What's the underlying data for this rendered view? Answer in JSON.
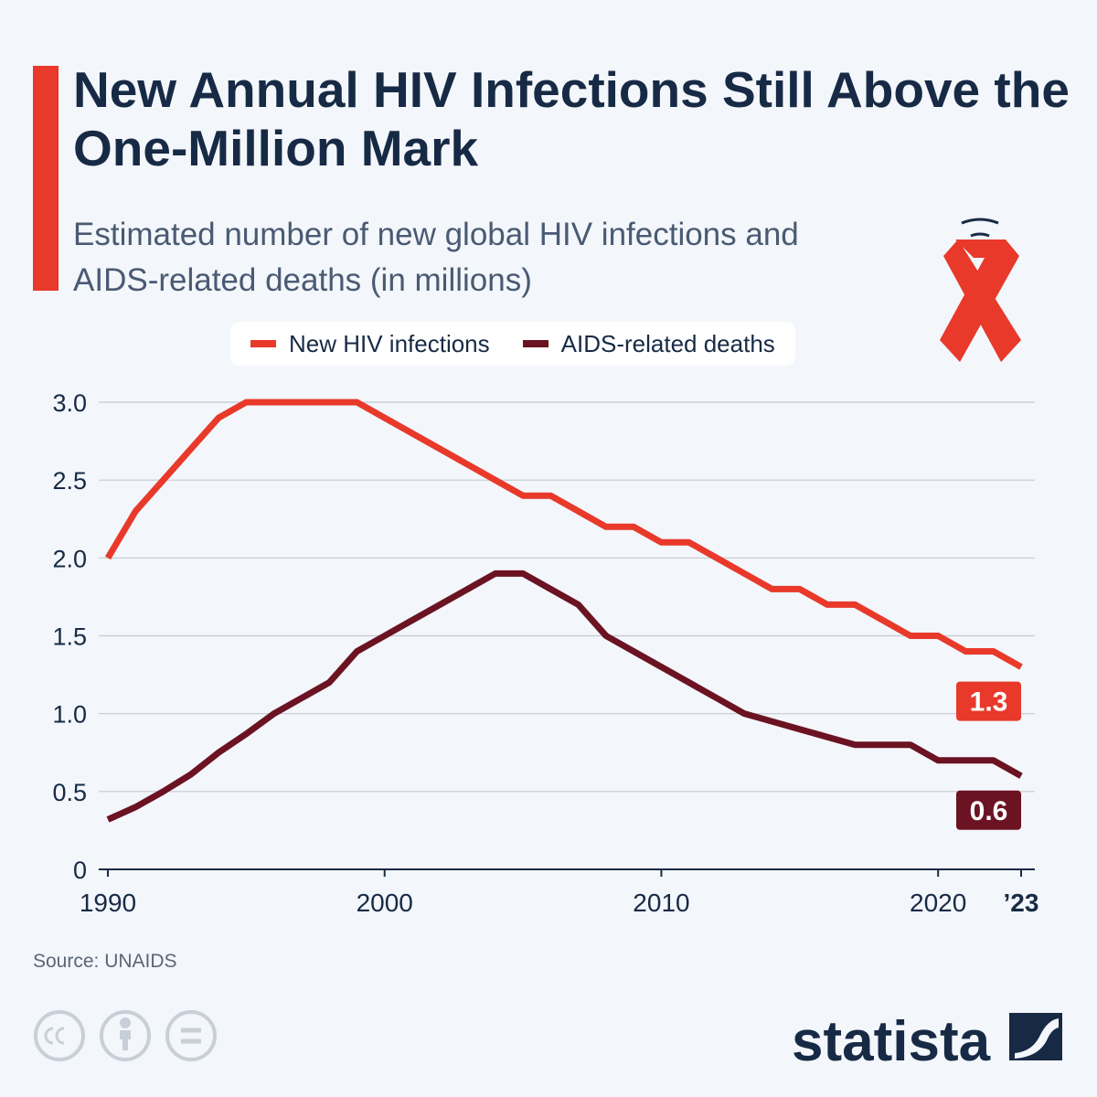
{
  "chart_data": {
    "type": "line",
    "title": "New Annual HIV Infections Still Above the One-Million Mark",
    "subtitle": "Estimated number of new global HIV infections and AIDS-related deaths (in millions)",
    "x": [
      1990,
      1991,
      1992,
      1993,
      1994,
      1995,
      1996,
      1997,
      1998,
      1999,
      2000,
      2001,
      2002,
      2003,
      2004,
      2005,
      2006,
      2007,
      2008,
      2009,
      2010,
      2011,
      2012,
      2013,
      2014,
      2015,
      2016,
      2017,
      2018,
      2019,
      2020,
      2021,
      2022,
      2023
    ],
    "series": [
      {
        "name": "New HIV infections",
        "color": "#e8392b",
        "values": [
          2.0,
          2.3,
          2.5,
          2.7,
          2.9,
          3.0,
          3.0,
          3.0,
          3.0,
          3.0,
          2.9,
          2.8,
          2.7,
          2.6,
          2.5,
          2.4,
          2.4,
          2.3,
          2.2,
          2.2,
          2.1,
          2.1,
          2.0,
          1.9,
          1.8,
          1.8,
          1.7,
          1.7,
          1.6,
          1.5,
          1.5,
          1.4,
          1.4,
          1.3
        ]
      },
      {
        "name": "AIDS-related deaths",
        "color": "#6b1322",
        "values": [
          0.32,
          0.4,
          0.5,
          0.61,
          0.75,
          0.87,
          1.0,
          1.1,
          1.2,
          1.4,
          1.5,
          1.6,
          1.7,
          1.8,
          1.9,
          1.9,
          1.8,
          1.7,
          1.5,
          1.4,
          1.3,
          1.2,
          1.1,
          1.0,
          0.95,
          0.9,
          0.85,
          0.8,
          0.8,
          0.8,
          0.7,
          0.7,
          0.7,
          0.6
        ]
      }
    ],
    "xlim": [
      1990,
      2023
    ],
    "xticks": [
      1990,
      2000,
      2010,
      2020,
      {
        "value": 2023,
        "label": "’23"
      }
    ],
    "ylim": [
      0,
      3
    ],
    "yticks": [
      0,
      0.5,
      {
        "value": 1,
        "label": "1.0"
      },
      1.5,
      {
        "value": 2,
        "label": "2.0"
      },
      2.5,
      {
        "value": 3,
        "label": "3.0"
      }
    ],
    "grid": true,
    "legend": "top",
    "source": "Source: UNAIDS",
    "brand": "statista"
  }
}
